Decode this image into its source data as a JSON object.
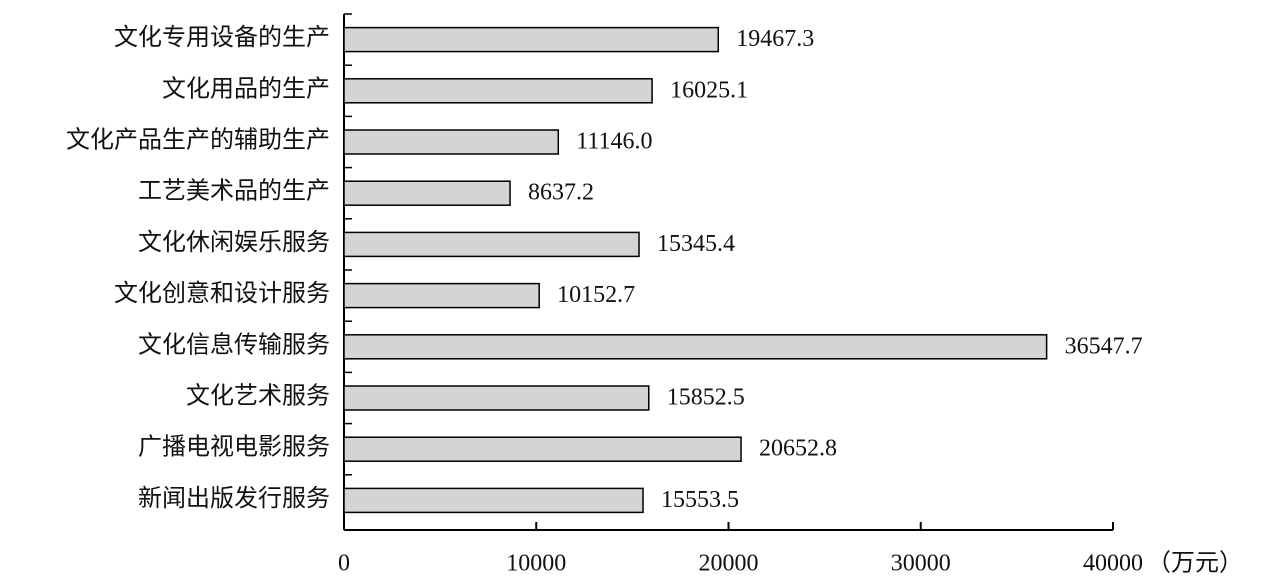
{
  "chart_data": {
    "type": "bar",
    "orientation": "horizontal",
    "categories": [
      "文化专用设备的生产",
      "文化用品的生产",
      "文化产品生产的辅助生产",
      "工艺美术品的生产",
      "文化休闲娱乐服务",
      "文化创意和设计服务",
      "文化信息传输服务",
      "文化艺术服务",
      "广播电视电影服务",
      "新闻出版发行服务"
    ],
    "values": [
      19467.3,
      16025.1,
      11146.0,
      8637.2,
      15345.4,
      10152.7,
      36547.7,
      15852.5,
      20652.8,
      15553.5
    ],
    "value_labels": [
      "19467.3",
      "16025.1",
      "11146.0",
      "8637.2",
      "15345.4",
      "10152.7",
      "36547.7",
      "15852.5",
      "20652.8",
      "15553.5"
    ],
    "color": "#d4d4d4",
    "xlim": [
      0,
      40000
    ],
    "xticks": [
      0,
      10000,
      20000,
      30000,
      40000
    ],
    "x_label": "（万元）",
    "grid": false
  }
}
